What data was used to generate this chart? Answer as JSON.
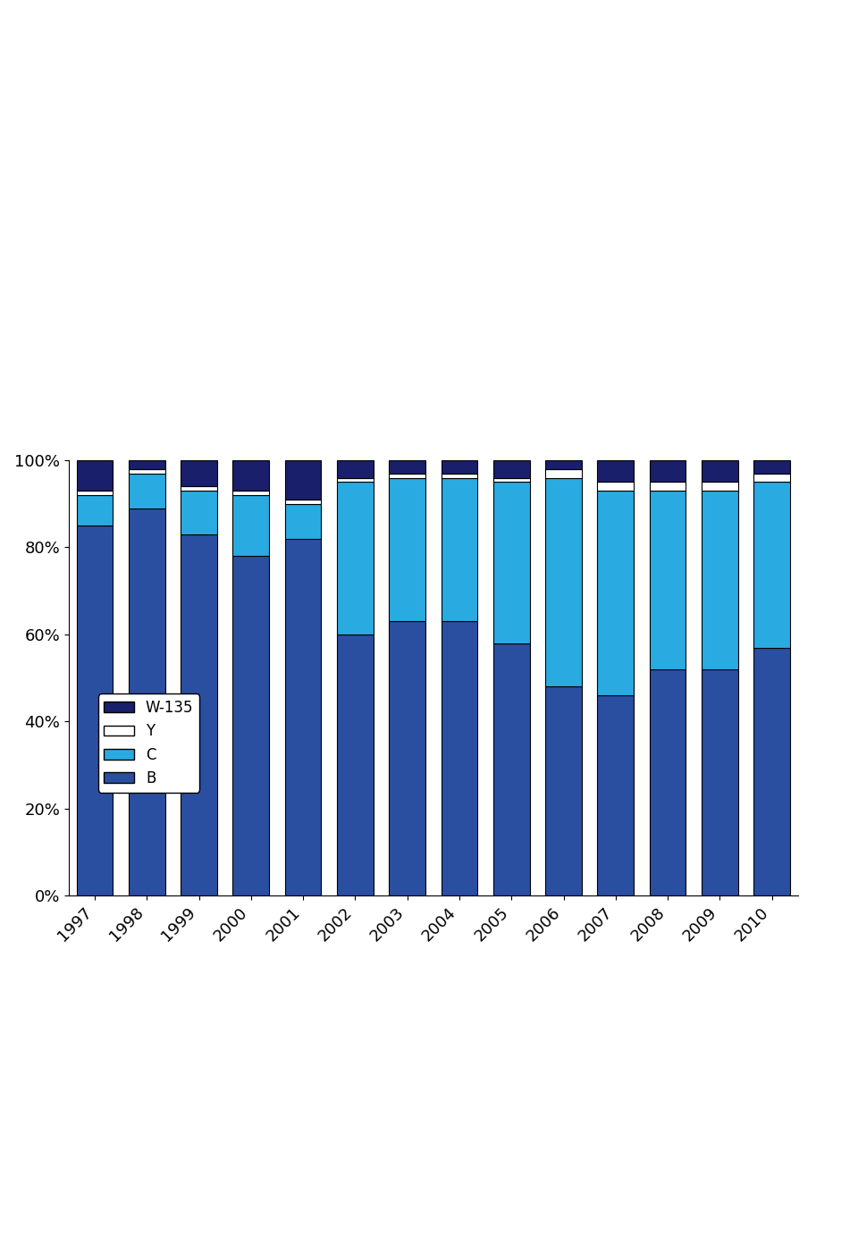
{
  "years": [
    1997,
    1998,
    1999,
    2000,
    2001,
    2002,
    2003,
    2004,
    2005,
    2006,
    2007,
    2008,
    2009,
    2010
  ],
  "B": [
    85,
    89,
    83,
    78,
    82,
    60,
    63,
    63,
    58,
    48,
    46,
    52,
    52,
    57
  ],
  "C": [
    7,
    8,
    10,
    14,
    8,
    35,
    33,
    33,
    37,
    48,
    47,
    41,
    41,
    38
  ],
  "Y": [
    1,
    1,
    1,
    1,
    1,
    1,
    1,
    1,
    1,
    2,
    2,
    2,
    2,
    2
  ],
  "W135": [
    7,
    2,
    6,
    7,
    9,
    4,
    3,
    3,
    4,
    2,
    5,
    5,
    5,
    3
  ],
  "color_B": "#2B4FA0",
  "color_C": "#29ABE2",
  "color_Y": "#FFFFFF",
  "color_W135": "#1A1F6B",
  "title": "",
  "ylabel": "",
  "xlabel": "",
  "ylim": [
    0,
    100
  ],
  "yticks": [
    0,
    20,
    40,
    60,
    80,
    100
  ],
  "ytick_labels": [
    "0%",
    "20%",
    "40%",
    "60%",
    "80%",
    "100%"
  ],
  "legend_labels": [
    "W-135",
    "Y",
    "C",
    "B"
  ],
  "background_color": "#FFFFFF",
  "bar_edge_color": "#000000",
  "bar_width": 0.7
}
